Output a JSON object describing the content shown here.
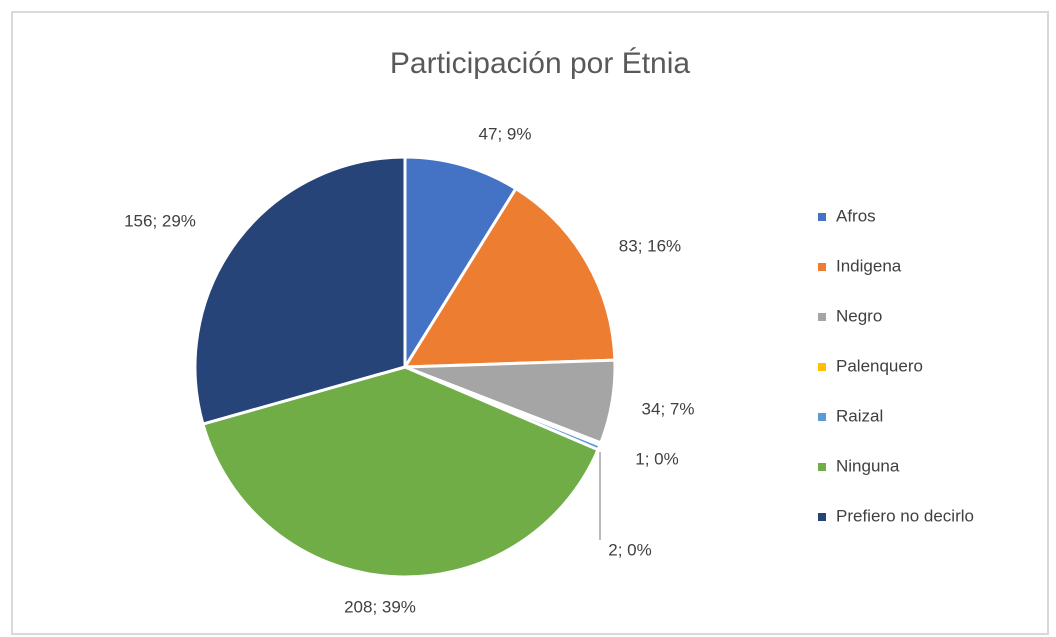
{
  "chart_data": {
    "type": "pie",
    "title": "Participación por Étnia",
    "categories": [
      "Afros",
      "Indigena",
      "Negro",
      "Palenquero",
      "Raizal",
      "Ninguna",
      "Prefiero no decirlo"
    ],
    "values": [
      47,
      83,
      34,
      1,
      2,
      208,
      156
    ],
    "value_labels": [
      "47; 9%",
      "83; 16%",
      "34; 7%",
      "1; 0%",
      "2; 0%",
      "208; 39%",
      "156; 29%"
    ],
    "colors": [
      "#4472c4",
      "#ed7d31",
      "#a5a5a5",
      "#ffc000",
      "#5b9bd5",
      "#70ad47",
      "#264478"
    ],
    "legend": "right"
  }
}
